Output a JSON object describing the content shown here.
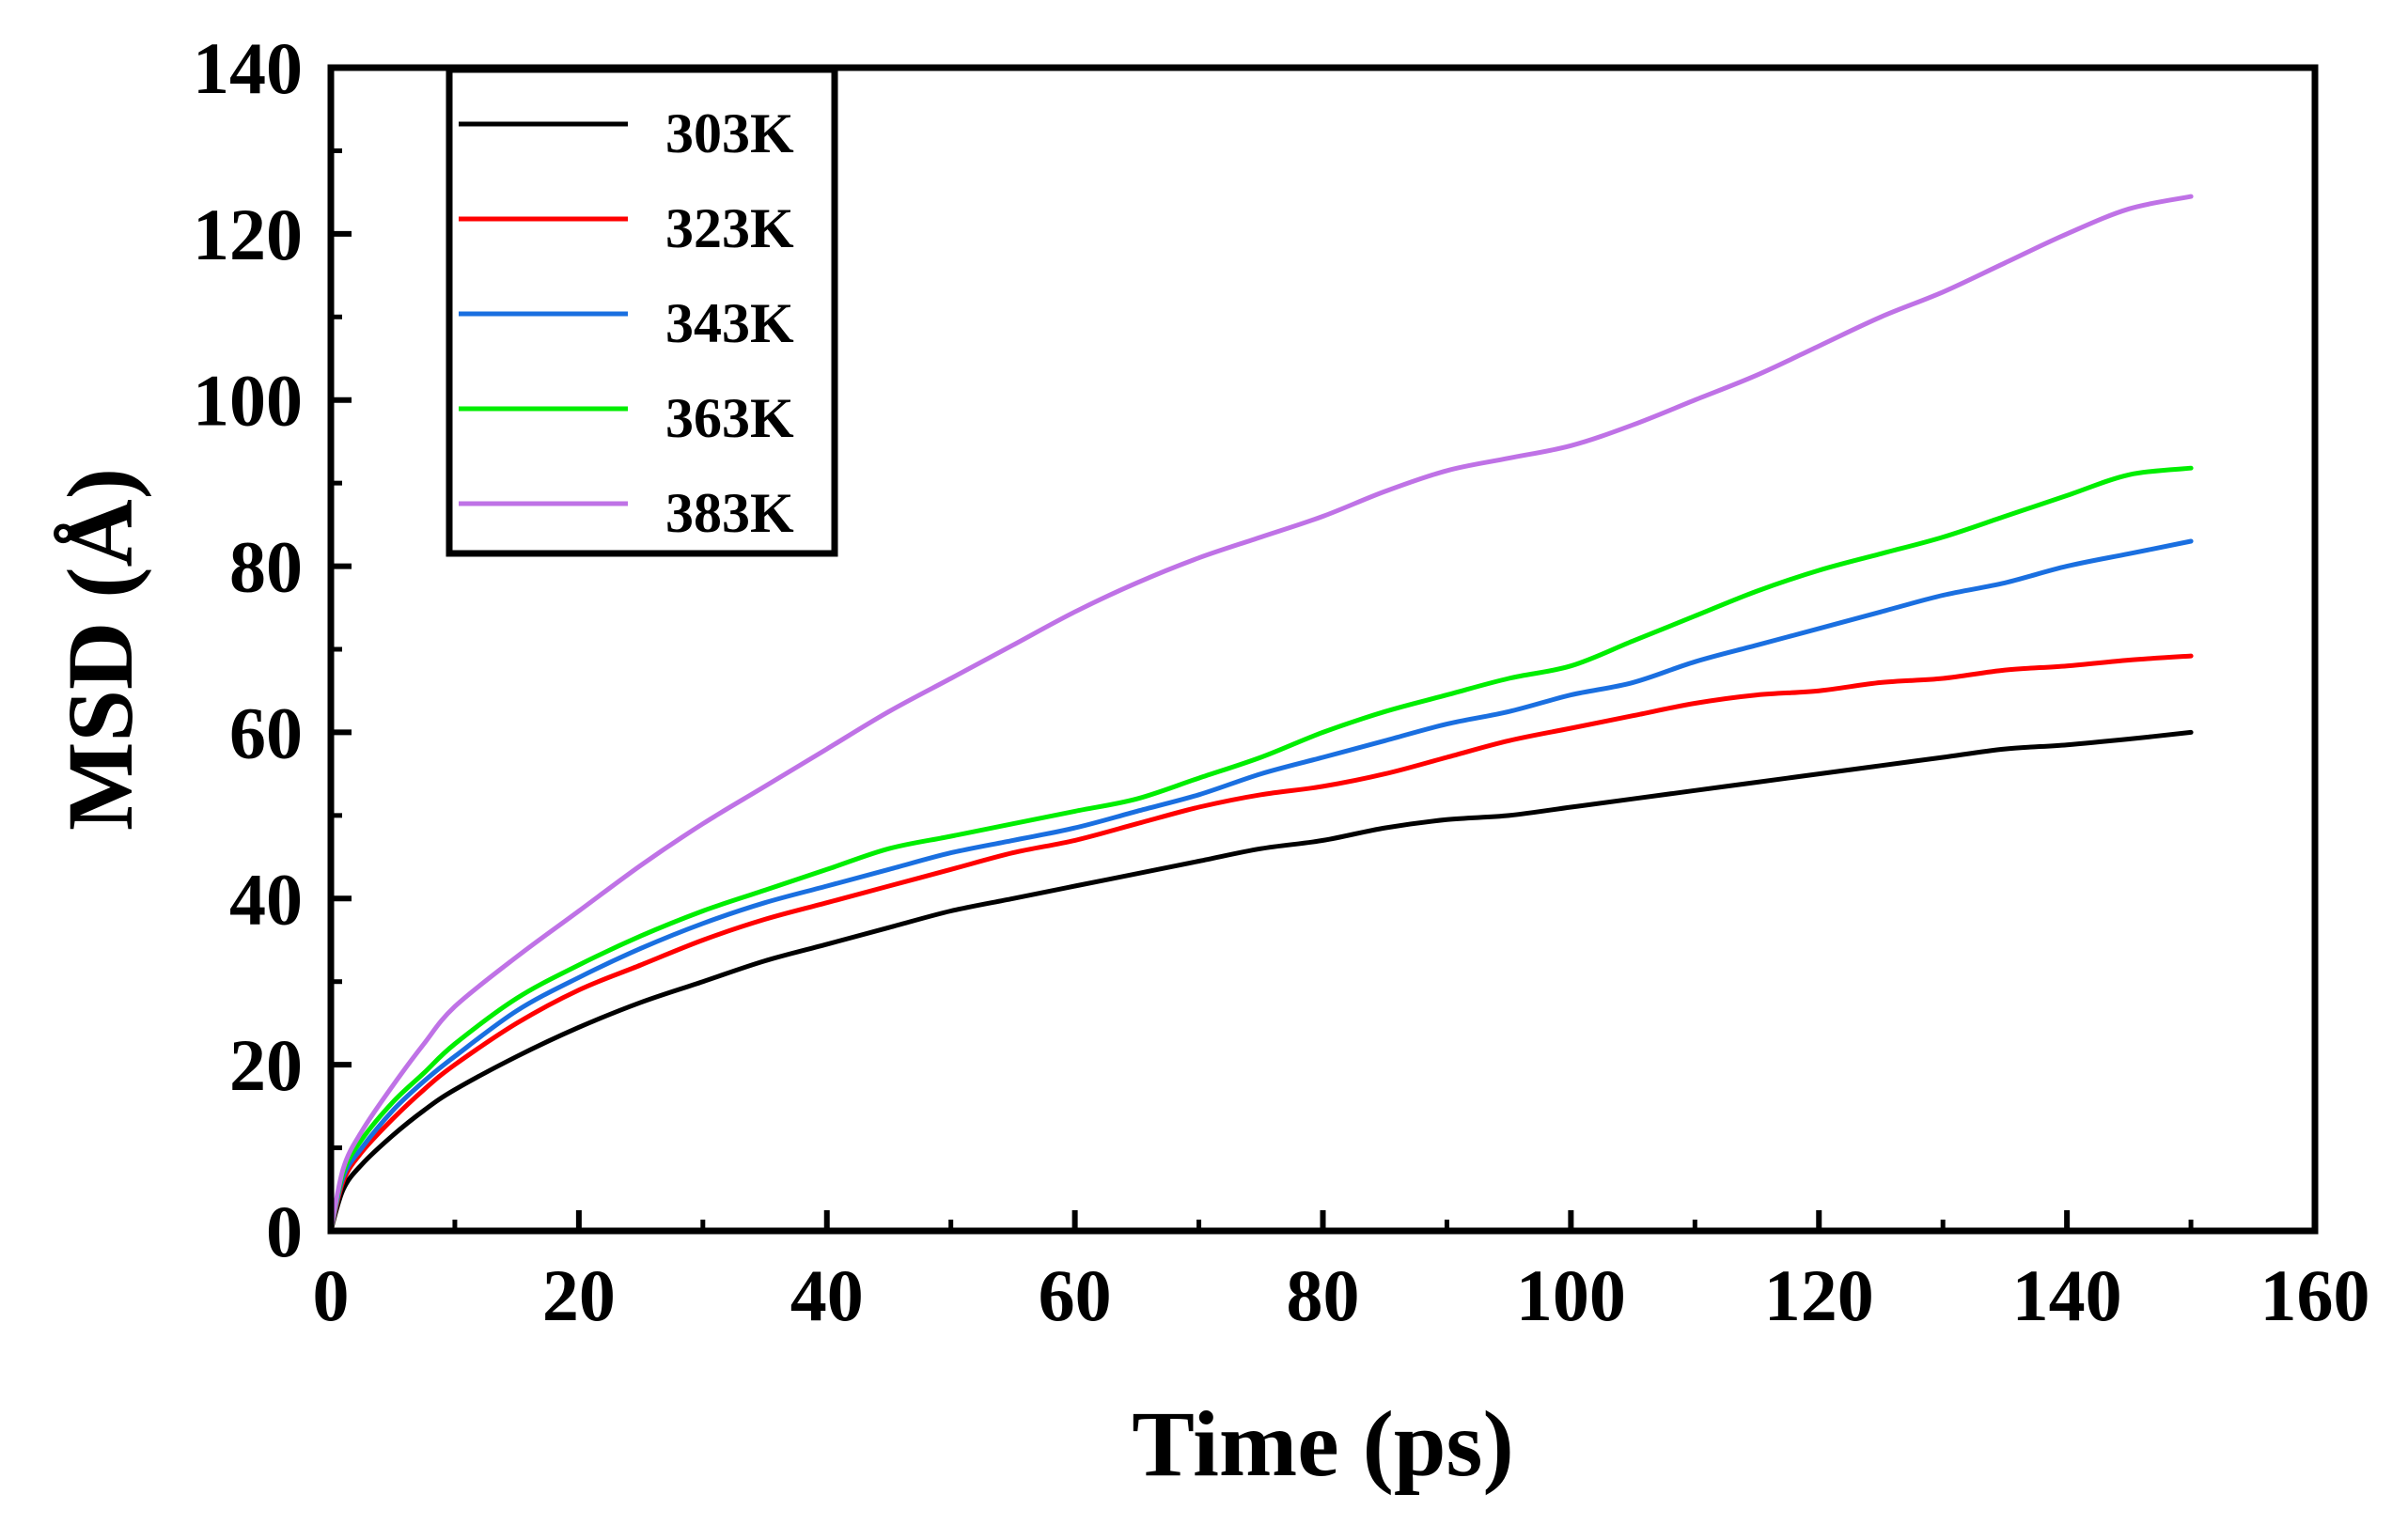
{
  "chart_data": {
    "type": "line",
    "title": "",
    "xlabel": "Time (ps)",
    "ylabel": "MSD (Å)",
    "xlim": [
      0,
      160
    ],
    "ylim": [
      0,
      140
    ],
    "xticks": [
      "0",
      "20",
      "40",
      "60",
      "80",
      "100",
      "120",
      "140",
      "160"
    ],
    "yticks": [
      "0",
      "20",
      "40",
      "60",
      "80",
      "100",
      "120",
      "140"
    ],
    "legend_position": "top-left",
    "x": [
      0,
      1,
      2.5,
      5,
      7.5,
      10,
      15,
      20,
      25,
      30,
      35,
      40,
      45,
      50,
      55,
      60,
      65,
      70,
      75,
      80,
      85,
      90,
      95,
      100,
      105,
      110,
      115,
      120,
      125,
      130,
      135,
      140,
      145,
      150
    ],
    "series": [
      {
        "name": "303K",
        "color": "#000000",
        "values": [
          0,
          5,
          8,
          11.5,
          14.5,
          17,
          21,
          24.5,
          27.5,
          30,
          32.5,
          34.5,
          36.5,
          38.5,
          40,
          41.5,
          43,
          44.5,
          46,
          47,
          48.5,
          49.5,
          50,
          51,
          52,
          53,
          54,
          55,
          56,
          57,
          58,
          58.5,
          59.2,
          60
        ]
      },
      {
        "name": "323K",
        "color": "#ff0000",
        "values": [
          0,
          6,
          9.5,
          13.5,
          17,
          20,
          25,
          29,
          32,
          35,
          37.5,
          39.5,
          41.5,
          43.5,
          45.5,
          47,
          49,
          51,
          52.5,
          53.5,
          55,
          57,
          59,
          60.5,
          62,
          63.5,
          64.5,
          65,
          66,
          66.5,
          67.5,
          68,
          68.7,
          69.2
        ]
      },
      {
        "name": "343K",
        "color": "#1a6fe0",
        "values": [
          0,
          6.5,
          10,
          14.5,
          18,
          21,
          26.5,
          30.5,
          34,
          37,
          39.5,
          41.5,
          43.5,
          45.5,
          47,
          48.5,
          50.5,
          52.5,
          55,
          57,
          59,
          61,
          62.5,
          64.5,
          66,
          68.5,
          70.5,
          72.5,
          74.5,
          76.5,
          78,
          80,
          81.5,
          83
        ]
      },
      {
        "name": "363K",
        "color": "#00ee00",
        "values": [
          0,
          7,
          11,
          15.5,
          19,
          22.5,
          28,
          32,
          35.5,
          38.5,
          41,
          43.5,
          46,
          47.5,
          49,
          50.5,
          52,
          54.5,
          57,
          60,
          62.5,
          64.5,
          66.5,
          68,
          71,
          74,
          77,
          79.5,
          81.5,
          83.5,
          86,
          88.5,
          91,
          91.8
        ]
      },
      {
        "name": "383K",
        "color": "#bf72e6",
        "values": [
          0,
          7.5,
          12,
          17.5,
          22.5,
          27,
          33,
          38.5,
          44,
          49,
          53.5,
          58,
          62.5,
          66.5,
          70.5,
          74.5,
          78,
          81,
          83.5,
          86,
          89,
          91.5,
          93,
          94.5,
          97,
          100,
          103,
          106.5,
          110,
          113,
          116.5,
          120,
          123,
          124.5
        ]
      }
    ]
  }
}
